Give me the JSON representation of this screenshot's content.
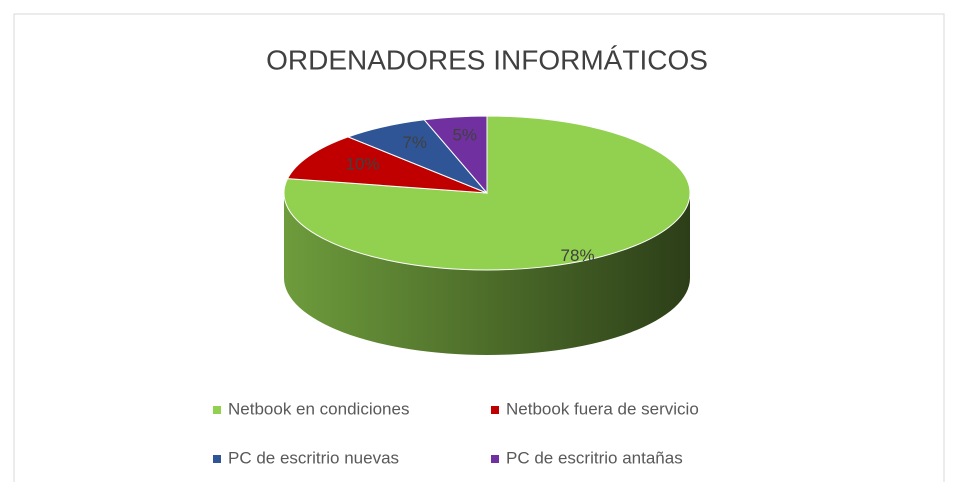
{
  "chart_data": {
    "type": "pie",
    "title": "ORDENADORES INFORMÁTICOS",
    "categories": [
      "Netbook en condiciones",
      "Netbook fuera de servicio",
      "PC de escritrio nuevas",
      "PC de escritrio antañas"
    ],
    "values": [
      78,
      10,
      7,
      5
    ],
    "value_labels": [
      "78%",
      "10%",
      "7%",
      "5%"
    ],
    "colors": [
      "#92d050",
      "#c00000",
      "#2f5597",
      "#7030a0"
    ],
    "legend": "bottom"
  }
}
